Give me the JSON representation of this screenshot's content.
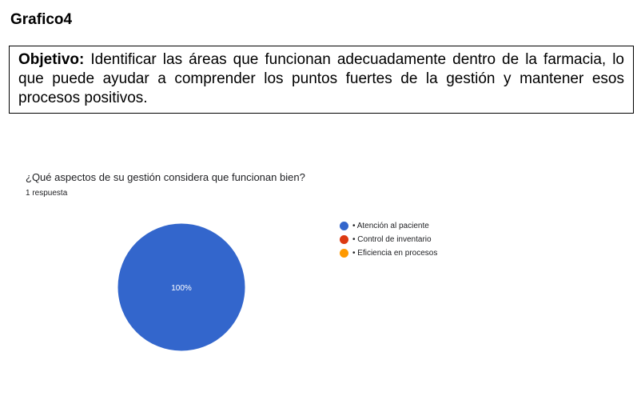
{
  "heading": "Grafico4",
  "objective": {
    "label": "Objetivo:",
    "text": " Identificar las áreas que funcionan adecuadamente dentro de la farmacia, lo que puede ayudar a comprender los puntos fuertes de la gestión y mantener esos procesos positivos."
  },
  "chart_data": {
    "type": "pie",
    "title": "¿Qué aspectos de su gestión considera que funcionan bien?",
    "subtitle": "1 respuesta",
    "legend_position": "right",
    "categories": [
      "• Atención al paciente",
      "• Control de inventario",
      "• Eficiencia en procesos"
    ],
    "values": [
      100,
      0,
      0
    ],
    "colors": [
      "#3366cc",
      "#dc3912",
      "#ff9900"
    ],
    "data_labels": [
      "100%",
      "",
      ""
    ]
  }
}
